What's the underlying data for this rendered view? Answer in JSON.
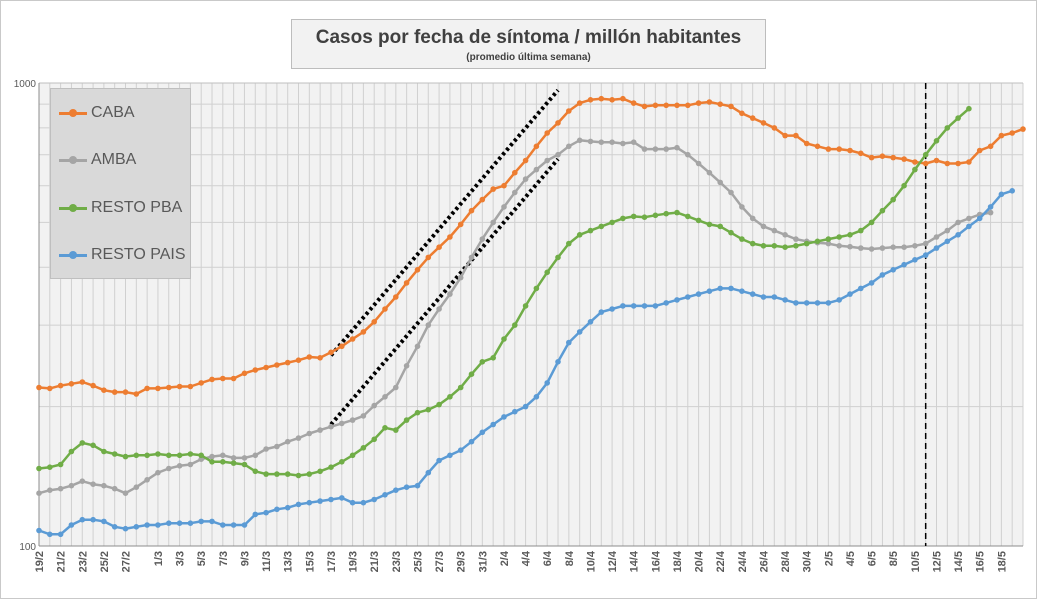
{
  "chart_data": {
    "type": "line",
    "title": "Casos por fecha de síntoma / millón habitantes",
    "subtitle": "(promedio última semana)",
    "xlabel": "",
    "ylabel": "",
    "y_scale": "log",
    "ylim": [
      100,
      1000
    ],
    "y_tick_labels": [
      "100",
      "1000"
    ],
    "grid": true,
    "legend_position": "top-left",
    "x_tick_labels": [
      "19/2",
      "21/2",
      "23/2",
      "25/2",
      "27/2",
      "1/3",
      "3/3",
      "5/3",
      "7/3",
      "9/3",
      "11/3",
      "13/3",
      "15/3",
      "17/3",
      "19/3",
      "21/3",
      "23/3",
      "25/3",
      "27/3",
      "29/3",
      "31/3",
      "2/4",
      "4/4",
      "6/4",
      "8/4",
      "10/4",
      "12/4",
      "14/4",
      "16/4",
      "18/4",
      "20/4",
      "22/4",
      "24/4",
      "26/4",
      "28/4",
      "30/4",
      "2/5",
      "4/5",
      "6/5",
      "8/5",
      "10/5",
      "12/5",
      "14/5",
      "16/5",
      "18/5"
    ],
    "series": [
      {
        "name": "CABA",
        "color": "#ed7d31",
        "values": [
          220,
          219,
          222,
          224,
          226,
          222,
          217,
          215,
          215,
          213,
          219,
          219,
          220,
          221,
          221,
          225,
          229,
          230,
          230,
          236,
          240,
          243,
          246,
          249,
          252,
          256,
          255,
          262,
          270,
          280,
          290,
          305,
          325,
          345,
          370,
          395,
          420,
          442,
          465,
          495,
          530,
          560,
          590,
          600,
          640,
          680,
          730,
          780,
          820,
          870,
          905,
          920,
          925,
          920,
          925,
          905,
          890,
          895,
          895,
          895,
          895,
          905,
          910,
          900,
          890,
          860,
          840,
          820,
          800,
          770,
          770,
          740,
          730,
          720,
          720,
          715,
          705,
          690,
          695,
          690,
          685,
          675,
          670,
          680,
          670,
          670,
          675,
          715,
          730,
          770,
          780,
          795
        ]
      },
      {
        "name": "AMBA",
        "color": "#a5a5a5",
        "values": [
          130,
          132,
          133,
          135,
          138,
          136,
          135,
          133,
          130,
          134,
          139,
          144,
          147,
          149,
          150,
          154,
          156,
          157,
          155,
          155,
          157,
          162,
          164,
          168,
          171,
          175,
          178,
          181,
          184,
          187,
          191,
          201,
          210,
          220,
          245,
          270,
          300,
          325,
          350,
          380,
          420,
          460,
          500,
          540,
          580,
          620,
          650,
          680,
          700,
          730,
          752,
          748,
          745,
          745,
          740,
          745,
          720,
          720,
          720,
          725,
          700,
          670,
          640,
          610,
          580,
          540,
          510,
          490,
          480,
          470,
          460,
          455,
          452,
          450,
          445,
          443,
          440,
          438,
          440,
          442,
          442,
          445,
          450,
          465,
          480,
          500,
          510,
          520,
          525
        ]
      },
      {
        "name": "RESTO PBA",
        "color": "#70ad47",
        "values": [
          147,
          148,
          150,
          160,
          167,
          165,
          160,
          158,
          156,
          157,
          157,
          158,
          157,
          157,
          158,
          157,
          152,
          152,
          151,
          150,
          145,
          143,
          143,
          143,
          142,
          143,
          145,
          148,
          152,
          157,
          163,
          170,
          180,
          178,
          187,
          194,
          197,
          202,
          210,
          220,
          235,
          250,
          255,
          280,
          300,
          330,
          360,
          390,
          420,
          450,
          470,
          480,
          490,
          500,
          510,
          515,
          513,
          518,
          522,
          525,
          515,
          505,
          495,
          490,
          475,
          460,
          450,
          445,
          445,
          442,
          445,
          450,
          455,
          460,
          465,
          470,
          480,
          500,
          530,
          560,
          600,
          650,
          700,
          750,
          800,
          840,
          880
        ]
      },
      {
        "name": "RESTO PAIS",
        "color": "#5b9bd5",
        "values": [
          108,
          106,
          106,
          111,
          114,
          114,
          113,
          110,
          109,
          110,
          111,
          111,
          112,
          112,
          112,
          113,
          113,
          111,
          111,
          111,
          117,
          118,
          120,
          121,
          123,
          124,
          125,
          126,
          127,
          124,
          124,
          126,
          129,
          132,
          134,
          135,
          144,
          153,
          157,
          161,
          168,
          176,
          183,
          190,
          195,
          200,
          210,
          225,
          250,
          275,
          290,
          305,
          320,
          325,
          330,
          330,
          330,
          330,
          335,
          340,
          345,
          350,
          355,
          360,
          360,
          355,
          350,
          345,
          345,
          340,
          335,
          335,
          335,
          335,
          340,
          350,
          360,
          370,
          385,
          395,
          405,
          415,
          425,
          440,
          455,
          470,
          490,
          510,
          540,
          575,
          585
        ]
      }
    ],
    "annotations": [
      {
        "type": "dotted-trend-line",
        "color": "#000000",
        "from": {
          "x": "17/3",
          "y": 258
        },
        "to": {
          "x": "7/4",
          "y": 965
        }
      },
      {
        "type": "dotted-trend-line",
        "color": "#000000",
        "from": {
          "x": "17/3",
          "y": 183
        },
        "to": {
          "x": "7/4",
          "y": 685
        }
      },
      {
        "type": "dashed-vertical-line",
        "color": "#000000",
        "x": "11/5"
      }
    ]
  }
}
